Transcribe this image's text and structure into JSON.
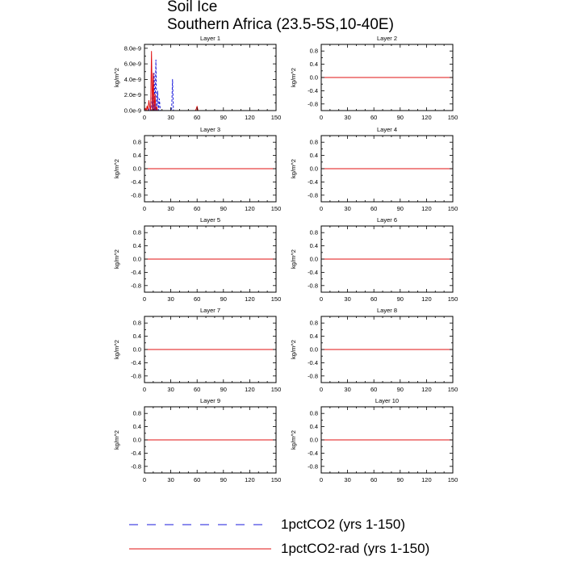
{
  "title": {
    "line1": "Soil Ice",
    "line2": "Southern Africa (23.5-5S,10-40E)"
  },
  "legend": [
    {
      "label": "1pctCO2 (yrs 1-150)",
      "style": "dashed",
      "color": "#1a1adc"
    },
    {
      "label": "1pctCO2-rad (yrs 1-150)",
      "style": "solid",
      "color": "#e01010"
    }
  ],
  "chart_data": [
    {
      "type": "line",
      "title": "Layer 1",
      "xlabel": "",
      "ylabel": "kg/m^2",
      "xlim": [
        0,
        150
      ],
      "ylim": [
        0,
        8.5e-09
      ],
      "xticks": [
        0,
        30,
        60,
        90,
        120,
        150
      ],
      "xtick_labels": [
        "0",
        "30",
        "60",
        "90",
        "120",
        "150"
      ],
      "yticks": [
        0,
        2e-09,
        4e-09,
        6e-09,
        8e-09
      ],
      "ytick_labels": [
        "0.0e-9",
        "2.0e-9",
        "4.0e-9",
        "6.0e-9",
        "8.0e-9"
      ],
      "series": [
        {
          "name": "1pctCO2 (yrs 1-150)",
          "style": "dashed",
          "color": "#1a1adc",
          "x": [
            0,
            5,
            6,
            7,
            8,
            9,
            10,
            11,
            12,
            13,
            14,
            15,
            16,
            17,
            18,
            19,
            30,
            31,
            32,
            33,
            34,
            150
          ],
          "y": [
            0,
            0,
            5e-10,
            0,
            0,
            2.8e-09,
            0,
            4.8e-09,
            0,
            6.5e-09,
            0,
            2.5e-09,
            0,
            1.5e-09,
            0,
            0,
            0,
            2.5e-10,
            4e-09,
            0,
            0,
            0
          ]
        },
        {
          "name": "1pctCO2-rad (yrs 1-150)",
          "style": "solid",
          "color": "#e01010",
          "x": [
            0,
            1,
            2,
            3,
            4,
            5,
            6,
            7,
            8,
            9,
            10,
            11,
            12,
            13,
            14,
            15,
            58,
            59,
            60,
            61,
            62,
            150
          ],
          "y": [
            0,
            3e-10,
            0,
            6e-10,
            0,
            1.3e-09,
            5e-10,
            0,
            7.6e-09,
            0,
            4.8e-09,
            0,
            2.1e-09,
            0,
            5e-10,
            0,
            0,
            2e-10,
            5.5e-10,
            0,
            0,
            0
          ]
        }
      ]
    },
    {
      "type": "line",
      "title": "Layer 2",
      "ylabel": "kg/m^2",
      "xlim": [
        0,
        150
      ],
      "ylim": [
        -1,
        1
      ],
      "xticks": [
        0,
        30,
        60,
        90,
        120,
        150
      ],
      "xtick_labels": [
        "0",
        "30",
        "60",
        "90",
        "120",
        "150"
      ],
      "yticks": [
        -0.8,
        -0.4,
        0,
        0.4,
        0.8
      ],
      "ytick_labels": [
        "-0.8",
        "-0.4",
        "0.0",
        "0.4",
        "0.8"
      ],
      "series": [
        {
          "name": "1pctCO2 (yrs 1-150)",
          "style": "dashed",
          "color": "#1a1adc",
          "x": [
            0,
            150
          ],
          "y": [
            0,
            0
          ]
        },
        {
          "name": "1pctCO2-rad (yrs 1-150)",
          "style": "solid",
          "color": "#e01010",
          "x": [
            0,
            150
          ],
          "y": [
            0,
            0
          ]
        }
      ]
    },
    {
      "type": "line",
      "title": "Layer 3",
      "ylabel": "kg/m^2",
      "xlim": [
        0,
        150
      ],
      "ylim": [
        -1,
        1
      ],
      "xticks": [
        0,
        30,
        60,
        90,
        120,
        150
      ],
      "xtick_labels": [
        "0",
        "30",
        "60",
        "90",
        "120",
        "150"
      ],
      "yticks": [
        -0.8,
        -0.4,
        0,
        0.4,
        0.8
      ],
      "ytick_labels": [
        "-0.8",
        "-0.4",
        "0.0",
        "0.4",
        "0.8"
      ],
      "series": [
        {
          "name": "1pctCO2 (yrs 1-150)",
          "style": "dashed",
          "color": "#1a1adc",
          "x": [
            0,
            150
          ],
          "y": [
            0,
            0
          ]
        },
        {
          "name": "1pctCO2-rad (yrs 1-150)",
          "style": "solid",
          "color": "#e01010",
          "x": [
            0,
            150
          ],
          "y": [
            0,
            0
          ]
        }
      ]
    },
    {
      "type": "line",
      "title": "Layer 4",
      "ylabel": "kg/m^2",
      "xlim": [
        0,
        150
      ],
      "ylim": [
        -1,
        1
      ],
      "xticks": [
        0,
        30,
        60,
        90,
        120,
        150
      ],
      "xtick_labels": [
        "0",
        "30",
        "60",
        "90",
        "120",
        "150"
      ],
      "yticks": [
        -0.8,
        -0.4,
        0,
        0.4,
        0.8
      ],
      "ytick_labels": [
        "-0.8",
        "-0.4",
        "0.0",
        "0.4",
        "0.8"
      ],
      "series": [
        {
          "name": "1pctCO2 (yrs 1-150)",
          "style": "dashed",
          "color": "#1a1adc",
          "x": [
            0,
            150
          ],
          "y": [
            0,
            0
          ]
        },
        {
          "name": "1pctCO2-rad (yrs 1-150)",
          "style": "solid",
          "color": "#e01010",
          "x": [
            0,
            150
          ],
          "y": [
            0,
            0
          ]
        }
      ]
    },
    {
      "type": "line",
      "title": "Layer 5",
      "ylabel": "kg/m^2",
      "xlim": [
        0,
        150
      ],
      "ylim": [
        -1,
        1
      ],
      "xticks": [
        0,
        30,
        60,
        90,
        120,
        150
      ],
      "xtick_labels": [
        "0",
        "30",
        "60",
        "90",
        "120",
        "150"
      ],
      "yticks": [
        -0.8,
        -0.4,
        0,
        0.4,
        0.8
      ],
      "ytick_labels": [
        "-0.8",
        "-0.4",
        "0.0",
        "0.4",
        "0.8"
      ],
      "series": [
        {
          "name": "1pctCO2 (yrs 1-150)",
          "style": "dashed",
          "color": "#1a1adc",
          "x": [
            0,
            150
          ],
          "y": [
            0,
            0
          ]
        },
        {
          "name": "1pctCO2-rad (yrs 1-150)",
          "style": "solid",
          "color": "#e01010",
          "x": [
            0,
            150
          ],
          "y": [
            0,
            0
          ]
        }
      ]
    },
    {
      "type": "line",
      "title": "Layer 6",
      "ylabel": "kg/m^2",
      "xlim": [
        0,
        150
      ],
      "ylim": [
        -1,
        1
      ],
      "xticks": [
        0,
        30,
        60,
        90,
        120,
        150
      ],
      "xtick_labels": [
        "0",
        "30",
        "60",
        "90",
        "120",
        "150"
      ],
      "yticks": [
        -0.8,
        -0.4,
        0,
        0.4,
        0.8
      ],
      "ytick_labels": [
        "-0.8",
        "-0.4",
        "0.0",
        "0.4",
        "0.8"
      ],
      "series": [
        {
          "name": "1pctCO2 (yrs 1-150)",
          "style": "dashed",
          "color": "#1a1adc",
          "x": [
            0,
            150
          ],
          "y": [
            0,
            0
          ]
        },
        {
          "name": "1pctCO2-rad (yrs 1-150)",
          "style": "solid",
          "color": "#e01010",
          "x": [
            0,
            150
          ],
          "y": [
            0,
            0
          ]
        }
      ]
    },
    {
      "type": "line",
      "title": "Layer 7",
      "ylabel": "kg/m^2",
      "xlim": [
        0,
        150
      ],
      "ylim": [
        -1,
        1
      ],
      "xticks": [
        0,
        30,
        60,
        90,
        120,
        150
      ],
      "xtick_labels": [
        "0",
        "30",
        "60",
        "90",
        "120",
        "150"
      ],
      "yticks": [
        -0.8,
        -0.4,
        0,
        0.4,
        0.8
      ],
      "ytick_labels": [
        "-0.8",
        "-0.4",
        "0.0",
        "0.4",
        "0.8"
      ],
      "series": [
        {
          "name": "1pctCO2 (yrs 1-150)",
          "style": "dashed",
          "color": "#1a1adc",
          "x": [
            0,
            150
          ],
          "y": [
            0,
            0
          ]
        },
        {
          "name": "1pctCO2-rad (yrs 1-150)",
          "style": "solid",
          "color": "#e01010",
          "x": [
            0,
            150
          ],
          "y": [
            0,
            0
          ]
        }
      ]
    },
    {
      "type": "line",
      "title": "Layer 8",
      "ylabel": "kg/m^2",
      "xlim": [
        0,
        150
      ],
      "ylim": [
        -1,
        1
      ],
      "xticks": [
        0,
        30,
        60,
        90,
        120,
        150
      ],
      "xtick_labels": [
        "0",
        "30",
        "60",
        "90",
        "120",
        "150"
      ],
      "yticks": [
        -0.8,
        -0.4,
        0,
        0.4,
        0.8
      ],
      "ytick_labels": [
        "-0.8",
        "-0.4",
        "0.0",
        "0.4",
        "0.8"
      ],
      "series": [
        {
          "name": "1pctCO2 (yrs 1-150)",
          "style": "dashed",
          "color": "#1a1adc",
          "x": [
            0,
            150
          ],
          "y": [
            0,
            0
          ]
        },
        {
          "name": "1pctCO2-rad (yrs 1-150)",
          "style": "solid",
          "color": "#e01010",
          "x": [
            0,
            150
          ],
          "y": [
            0,
            0
          ]
        }
      ]
    },
    {
      "type": "line",
      "title": "Layer 9",
      "ylabel": "kg/m^2",
      "xlim": [
        0,
        150
      ],
      "ylim": [
        -1,
        1
      ],
      "xticks": [
        0,
        30,
        60,
        90,
        120,
        150
      ],
      "xtick_labels": [
        "0",
        "30",
        "60",
        "90",
        "120",
        "150"
      ],
      "yticks": [
        -0.8,
        -0.4,
        0,
        0.4,
        0.8
      ],
      "ytick_labels": [
        "-0.8",
        "-0.4",
        "0.0",
        "0.4",
        "0.8"
      ],
      "series": [
        {
          "name": "1pctCO2 (yrs 1-150)",
          "style": "dashed",
          "color": "#1a1adc",
          "x": [
            0,
            150
          ],
          "y": [
            0,
            0
          ]
        },
        {
          "name": "1pctCO2-rad (yrs 1-150)",
          "style": "solid",
          "color": "#e01010",
          "x": [
            0,
            150
          ],
          "y": [
            0,
            0
          ]
        }
      ]
    },
    {
      "type": "line",
      "title": "Layer 10",
      "ylabel": "kg/m^2",
      "xlim": [
        0,
        150
      ],
      "ylim": [
        -1,
        1
      ],
      "xticks": [
        0,
        30,
        60,
        90,
        120,
        150
      ],
      "xtick_labels": [
        "0",
        "30",
        "60",
        "90",
        "120",
        "150"
      ],
      "yticks": [
        -0.8,
        -0.4,
        0,
        0.4,
        0.8
      ],
      "ytick_labels": [
        "-0.8",
        "-0.4",
        "0.0",
        "0.4",
        "0.8"
      ],
      "series": [
        {
          "name": "1pctCO2 (yrs 1-150)",
          "style": "dashed",
          "color": "#1a1adc",
          "x": [
            0,
            150
          ],
          "y": [
            0,
            0
          ]
        },
        {
          "name": "1pctCO2-rad (yrs 1-150)",
          "style": "solid",
          "color": "#e01010",
          "x": [
            0,
            150
          ],
          "y": [
            0,
            0
          ]
        }
      ]
    }
  ]
}
